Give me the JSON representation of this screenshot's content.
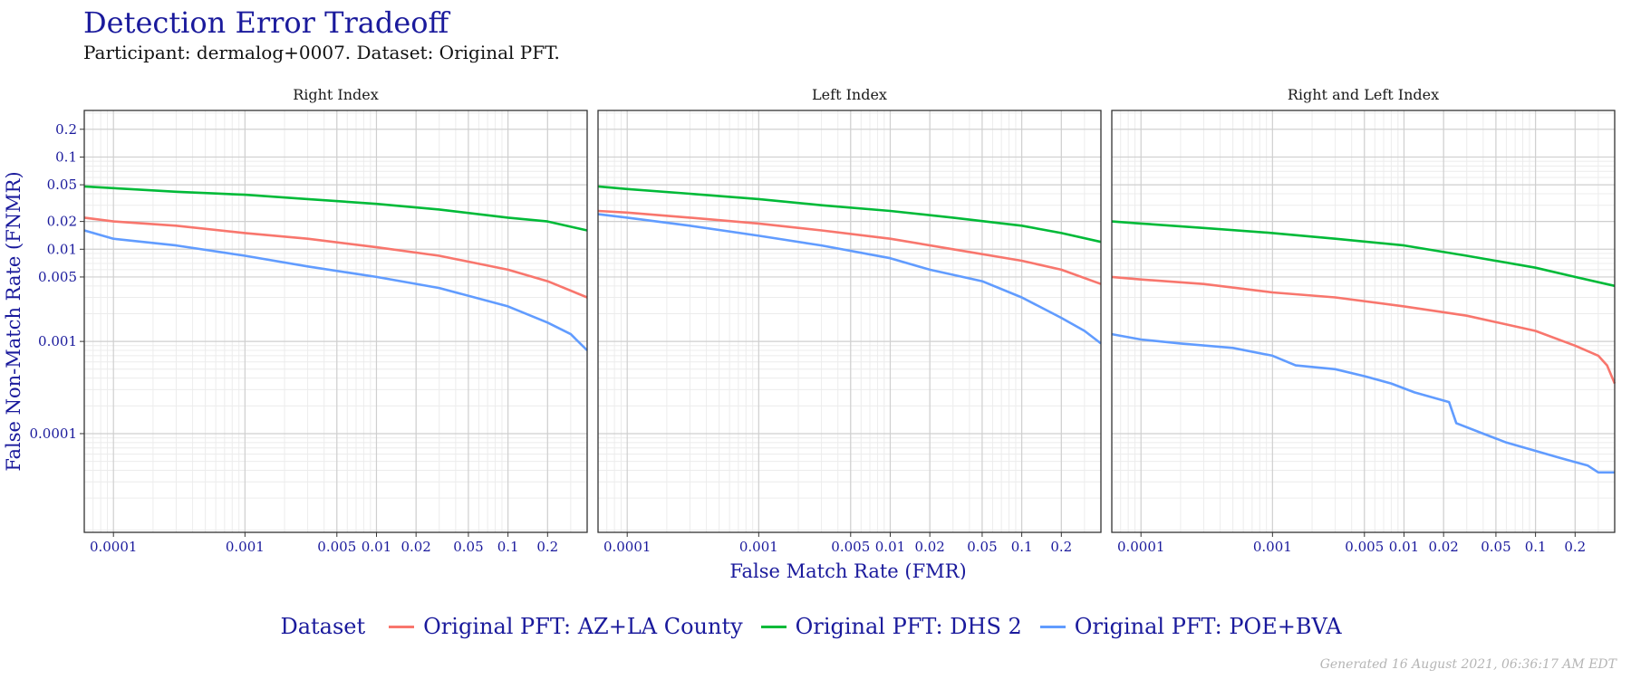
{
  "title": "Detection Error Tradeoff",
  "subtitle": "Participant: dermalog+0007. Dataset: Original PFT.",
  "footer": "Generated 16 August 2021, 06:36:17 AM EDT",
  "legend": {
    "title": "Dataset",
    "items": [
      {
        "label": "Original PFT: AZ+LA County",
        "color": "#f8766d"
      },
      {
        "label": "Original PFT: DHS 2",
        "color": "#00ba38"
      },
      {
        "label": "Original PFT: POE+BVA",
        "color": "#619cff"
      }
    ]
  },
  "chart_data": {
    "type": "line",
    "xlabel": "False Match Rate (FMR)",
    "ylabel": "False Non-Match Rate (FNMR)",
    "xscale": "log",
    "yscale": "log",
    "xlim": [
      6e-05,
      0.4
    ],
    "ylim": [
      8.5e-06,
      0.32
    ],
    "xticks": [
      0.0001,
      0.001,
      0.005,
      0.01,
      0.02,
      0.05,
      0.1,
      0.2
    ],
    "xtick_labels": [
      "0.0001",
      "0.001",
      "0.005",
      "0.01",
      "0.02",
      "0.05",
      "0.1",
      "0.2"
    ],
    "yticks": [
      0.0001,
      0.001,
      0.005,
      0.01,
      0.02,
      0.05,
      0.1,
      0.2
    ],
    "ytick_labels": [
      "0.0001",
      "0.001",
      "0.005",
      "0.01",
      "0.02",
      "0.05",
      "0.1",
      "0.2"
    ],
    "grid": true,
    "legend_position": "bottom",
    "panels": [
      {
        "name": "Right Index",
        "series": [
          {
            "name": "Original PFT: AZ+LA County",
            "color": "#f8766d",
            "x": [
              6e-05,
              0.0001,
              0.0003,
              0.001,
              0.003,
              0.01,
              0.03,
              0.1,
              0.2,
              0.4
            ],
            "y": [
              0.022,
              0.02,
              0.018,
              0.015,
              0.013,
              0.0105,
              0.0085,
              0.006,
              0.0045,
              0.003
            ]
          },
          {
            "name": "Original PFT: DHS 2",
            "color": "#00ba38",
            "x": [
              6e-05,
              0.0001,
              0.0003,
              0.001,
              0.003,
              0.01,
              0.03,
              0.1,
              0.2,
              0.4
            ],
            "y": [
              0.048,
              0.046,
              0.042,
              0.039,
              0.035,
              0.031,
              0.027,
              0.022,
              0.02,
              0.016
            ]
          },
          {
            "name": "Original PFT: POE+BVA",
            "color": "#619cff",
            "x": [
              6e-05,
              0.0001,
              0.0003,
              0.001,
              0.003,
              0.01,
              0.03,
              0.1,
              0.2,
              0.3,
              0.4
            ],
            "y": [
              0.016,
              0.013,
              0.011,
              0.0085,
              0.0065,
              0.005,
              0.0038,
              0.0024,
              0.0016,
              0.0012,
              0.0008
            ]
          }
        ]
      },
      {
        "name": "Left Index",
        "series": [
          {
            "name": "Original PFT: AZ+LA County",
            "color": "#f8766d",
            "x": [
              6e-05,
              0.0001,
              0.0003,
              0.001,
              0.003,
              0.01,
              0.03,
              0.1,
              0.2,
              0.4
            ],
            "y": [
              0.026,
              0.025,
              0.022,
              0.019,
              0.016,
              0.013,
              0.01,
              0.0075,
              0.006,
              0.0042
            ]
          },
          {
            "name": "Original PFT: DHS 2",
            "color": "#00ba38",
            "x": [
              6e-05,
              0.0001,
              0.0003,
              0.001,
              0.003,
              0.01,
              0.03,
              0.1,
              0.2,
              0.4
            ],
            "y": [
              0.048,
              0.045,
              0.04,
              0.035,
              0.03,
              0.026,
              0.022,
              0.018,
              0.015,
              0.012
            ]
          },
          {
            "name": "Original PFT: POE+BVA",
            "color": "#619cff",
            "x": [
              6e-05,
              0.0001,
              0.0003,
              0.001,
              0.003,
              0.01,
              0.02,
              0.05,
              0.1,
              0.2,
              0.3,
              0.4
            ],
            "y": [
              0.024,
              0.022,
              0.018,
              0.014,
              0.011,
              0.008,
              0.006,
              0.0045,
              0.003,
              0.0018,
              0.0013,
              0.00095
            ]
          }
        ]
      },
      {
        "name": "Right and Left Index",
        "series": [
          {
            "name": "Original PFT: AZ+LA County",
            "color": "#f8766d",
            "x": [
              6e-05,
              0.0001,
              0.0003,
              0.001,
              0.003,
              0.01,
              0.03,
              0.1,
              0.2,
              0.3,
              0.35,
              0.4
            ],
            "y": [
              0.005,
              0.0047,
              0.0042,
              0.0034,
              0.003,
              0.0024,
              0.0019,
              0.0013,
              0.0009,
              0.0007,
              0.00055,
              0.00035
            ]
          },
          {
            "name": "Original PFT: DHS 2",
            "color": "#00ba38",
            "x": [
              6e-05,
              0.0001,
              0.0003,
              0.001,
              0.003,
              0.01,
              0.03,
              0.1,
              0.2,
              0.4
            ],
            "y": [
              0.02,
              0.019,
              0.017,
              0.015,
              0.013,
              0.011,
              0.0085,
              0.0063,
              0.005,
              0.004
            ]
          },
          {
            "name": "Original PFT: POE+BVA",
            "color": "#619cff",
            "x": [
              6e-05,
              0.0001,
              0.0002,
              0.0005,
              0.001,
              0.0015,
              0.003,
              0.005,
              0.008,
              0.012,
              0.022,
              0.025,
              0.04,
              0.06,
              0.1,
              0.15,
              0.25,
              0.3,
              0.4
            ],
            "y": [
              0.0012,
              0.00105,
              0.00095,
              0.00085,
              0.0007,
              0.00055,
              0.0005,
              0.00042,
              0.00035,
              0.00028,
              0.00022,
              0.00013,
              0.0001,
              8e-05,
              6.5e-05,
              5.5e-05,
              4.5e-05,
              3.8e-05,
              3.8e-05
            ]
          }
        ]
      }
    ]
  }
}
